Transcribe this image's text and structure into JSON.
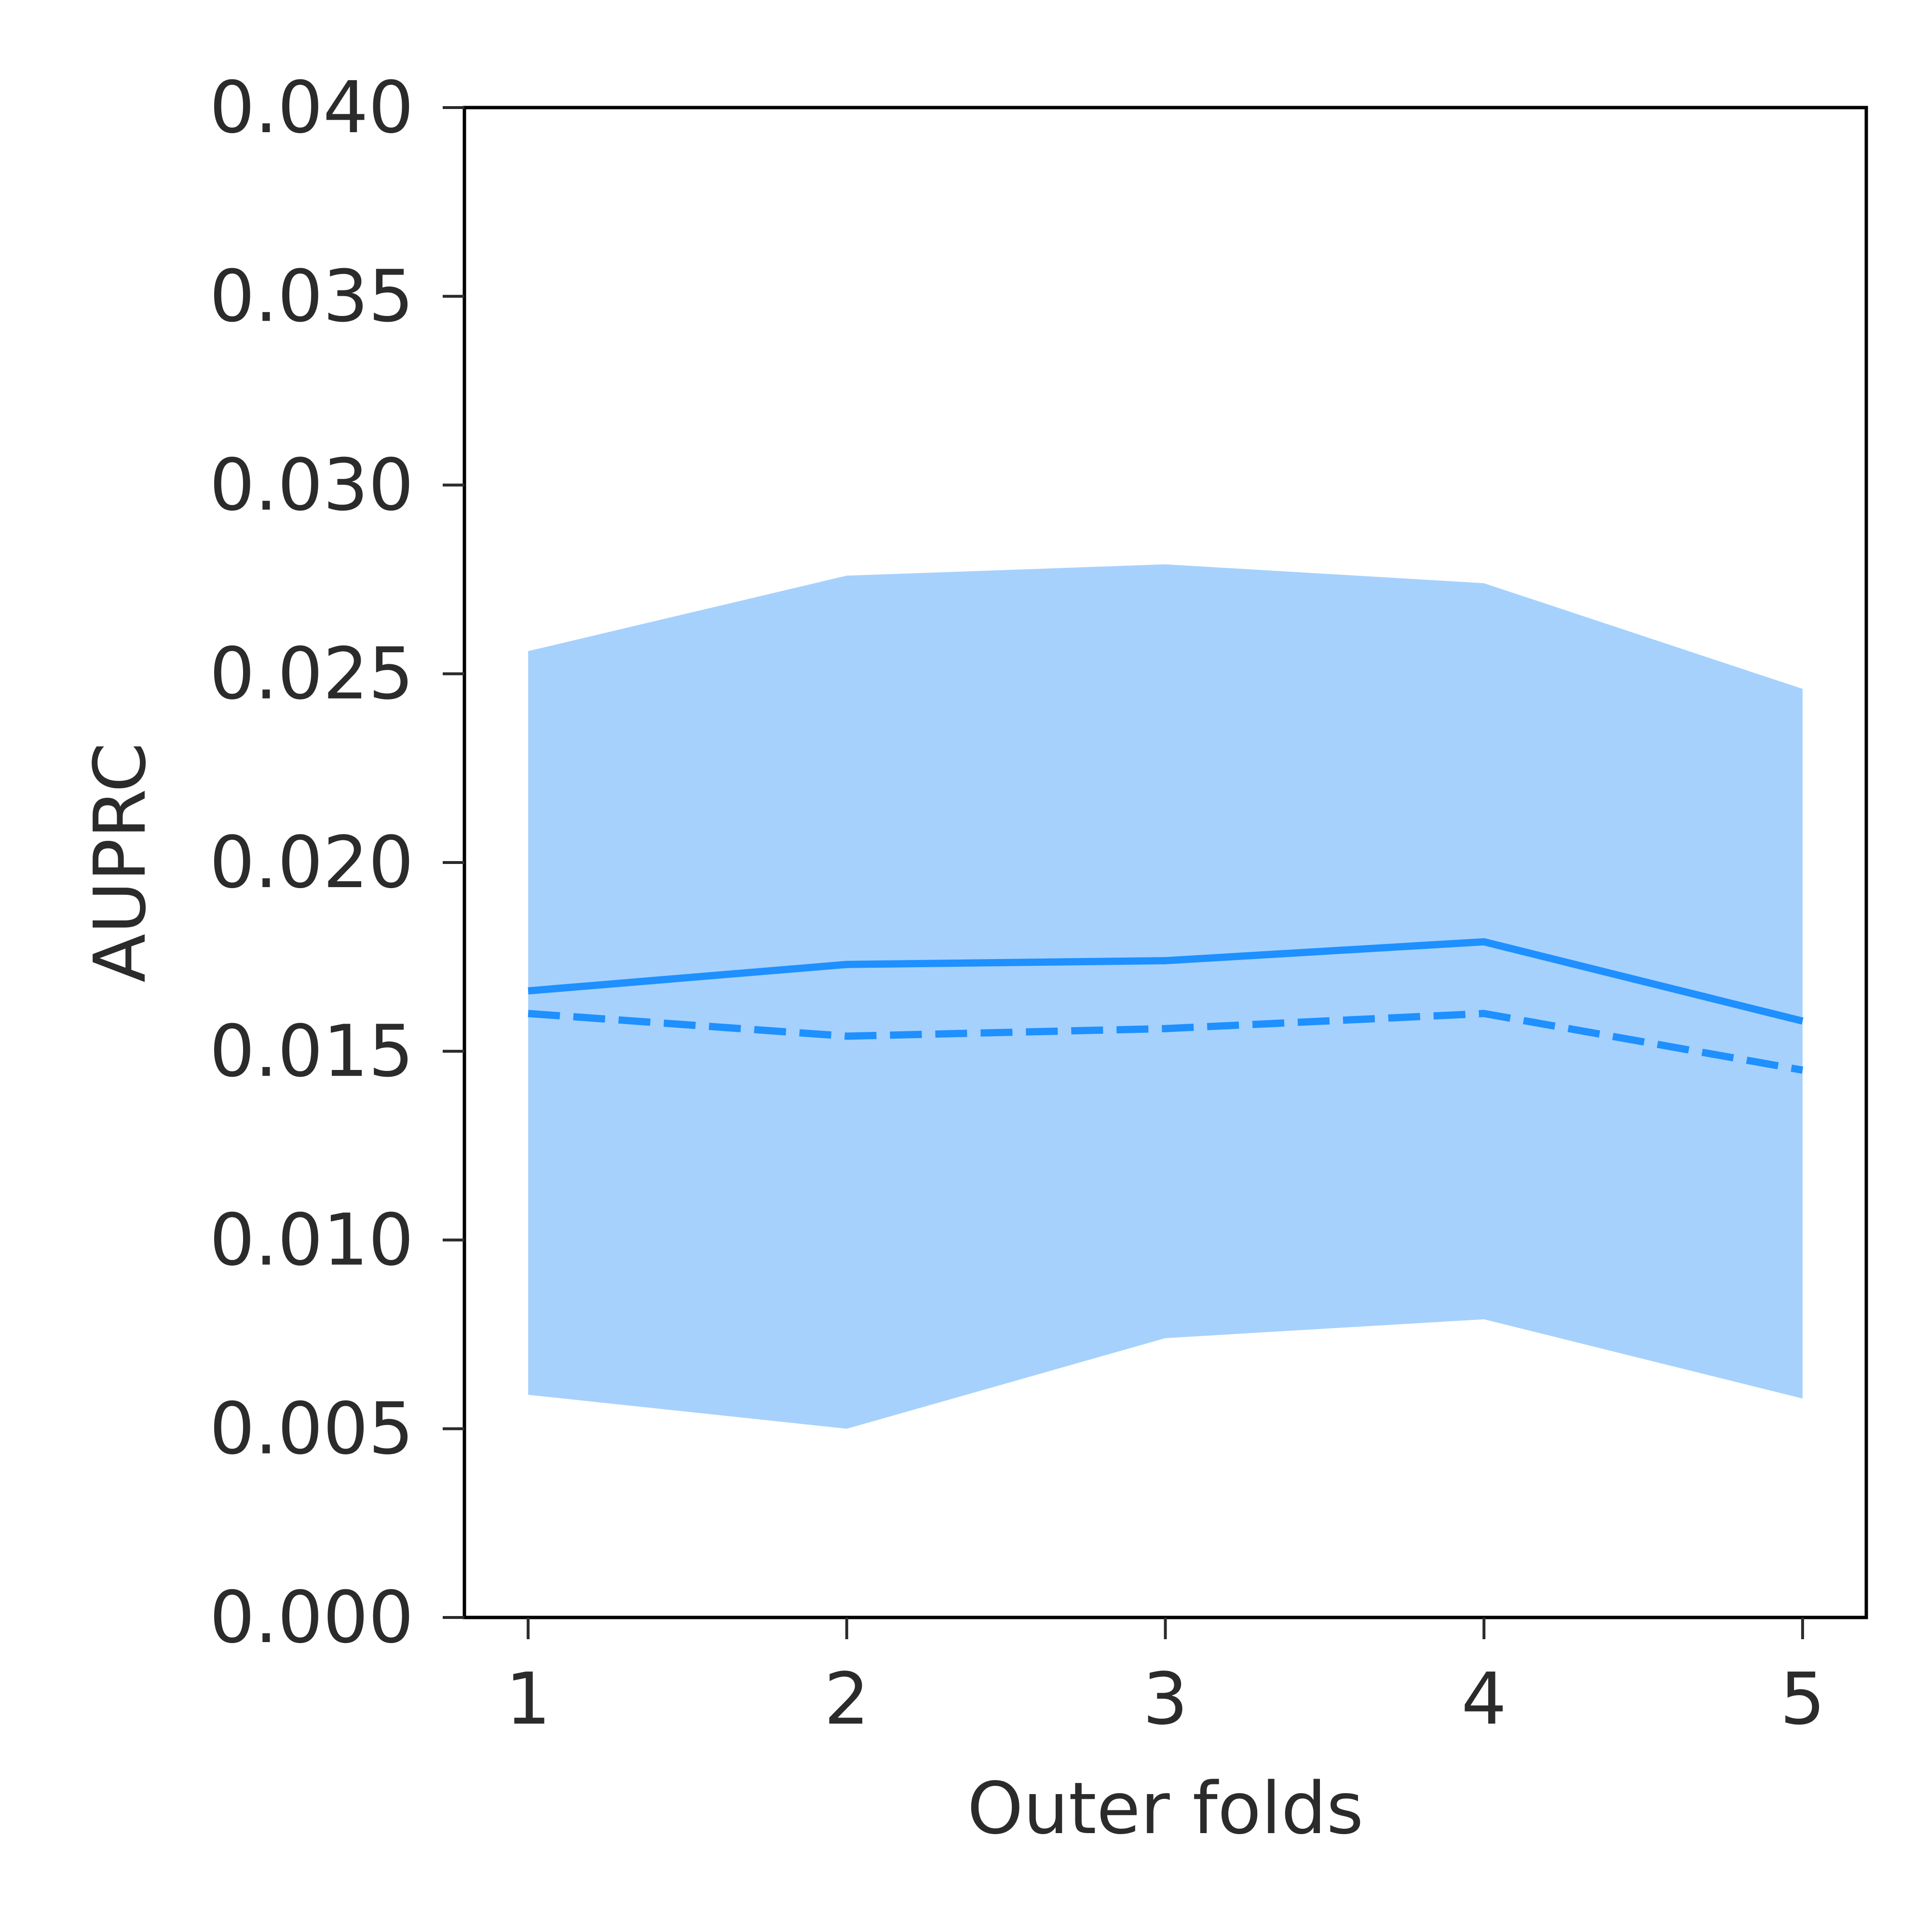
{
  "chart_data": {
    "type": "line",
    "title": "",
    "xlabel": "Outer folds",
    "ylabel": "AUPRC",
    "x": [
      1,
      2,
      3,
      4,
      5
    ],
    "xlim": [
      0.8,
      5.2
    ],
    "ylim": [
      0.0,
      0.04
    ],
    "xticks": [
      "1",
      "2",
      "3",
      "4",
      "5"
    ],
    "yticks": [
      "0.000",
      "0.005",
      "0.010",
      "0.015",
      "0.020",
      "0.025",
      "0.030",
      "0.035",
      "0.040"
    ],
    "grid": false,
    "legend": "none",
    "band": {
      "lower": [
        0.0059,
        0.005,
        0.0074,
        0.0079,
        0.0058
      ],
      "upper": [
        0.0256,
        0.0276,
        0.0279,
        0.0274,
        0.0246
      ],
      "color": "#a6d1fd"
    },
    "series": [
      {
        "style": "solid",
        "color": "#1e90ff",
        "values": [
          0.0166,
          0.0173,
          0.0174,
          0.0179,
          0.0158
        ]
      },
      {
        "style": "dashed",
        "color": "#1e90ff",
        "values": [
          0.016,
          0.0154,
          0.0156,
          0.016,
          0.0145
        ]
      }
    ]
  }
}
